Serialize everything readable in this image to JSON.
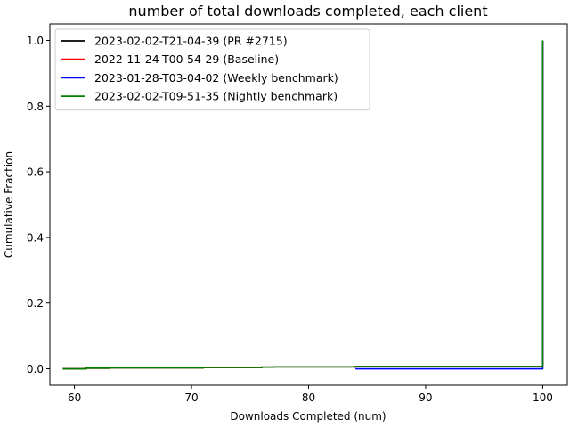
{
  "chart_data": {
    "type": "line",
    "title": "number of total downloads completed, each client",
    "xlabel": "Downloads Completed (num)",
    "ylabel": "Cumulative Fraction",
    "xlim": [
      57.9,
      102.1
    ],
    "ylim": [
      -0.05,
      1.05
    ],
    "x_ticks": [
      60,
      70,
      80,
      90,
      100
    ],
    "y_ticks": [
      0.0,
      0.2,
      0.4,
      0.6,
      0.8,
      1.0
    ],
    "x_tick_labels": [
      "60",
      "70",
      "80",
      "90",
      "100"
    ],
    "y_tick_labels": [
      "0.0",
      "0.2",
      "0.4",
      "0.6",
      "0.8",
      "1.0"
    ],
    "grid": false,
    "legend_position": "top-left",
    "step": "post",
    "series": [
      {
        "name": "2023-02-02-T21-04-39 (PR #2715)",
        "color": "#000000",
        "x": [
          59,
          61,
          63,
          71,
          76,
          77,
          84,
          100,
          100
        ],
        "y": [
          0.0,
          0.002,
          0.003,
          0.004,
          0.005,
          0.006,
          0.007,
          0.007,
          1.0
        ]
      },
      {
        "name": "2022-11-24-T00-54-29 (Baseline)",
        "color": "#ff0000",
        "x": [
          59,
          61,
          63,
          71,
          76,
          77,
          84,
          100,
          100
        ],
        "y": [
          0.0,
          0.002,
          0.003,
          0.004,
          0.005,
          0.006,
          0.007,
          0.007,
          1.0
        ]
      },
      {
        "name": "2023-01-28-T03-04-02 (Weekly benchmark)",
        "color": "#0000ff",
        "x": [
          84,
          100,
          100
        ],
        "y": [
          0.0,
          0.0,
          1.0
        ]
      },
      {
        "name": "2023-02-02-T09-51-35 (Nightly benchmark)",
        "color": "#008000",
        "x": [
          59,
          61,
          63,
          71,
          76,
          77,
          84,
          100,
          100
        ],
        "y": [
          0.0,
          0.002,
          0.003,
          0.004,
          0.005,
          0.006,
          0.007,
          0.007,
          1.0
        ]
      }
    ]
  }
}
